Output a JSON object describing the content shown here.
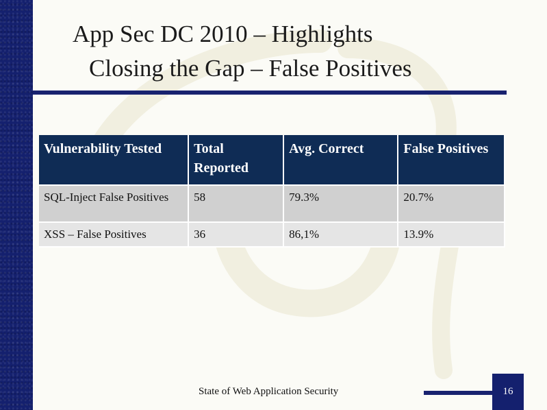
{
  "slide": {
    "title_line1": "App Sec DC 2010 – Highlights",
    "title_line2": "Closing the Gap – False Positives"
  },
  "table": {
    "headers": [
      "Vulnerability Tested",
      "Total Reported",
      "Avg. Correct",
      "False Positives"
    ],
    "rows": [
      [
        "SQL-Inject False Positives",
        "58",
        "79.3%",
        "20.7%"
      ],
      [
        "XSS – False Positives",
        "36",
        "86,1%",
        "13.9%"
      ]
    ]
  },
  "footer": {
    "text": "State of Web Application Security",
    "page_number": "16"
  },
  "colors": {
    "sidebar": "#14206e",
    "header_fill": "#0f2c55",
    "row_fill_1": "#d0d0d0",
    "row_fill_2": "#e5e5e5",
    "accent_rule": "#18226f"
  }
}
